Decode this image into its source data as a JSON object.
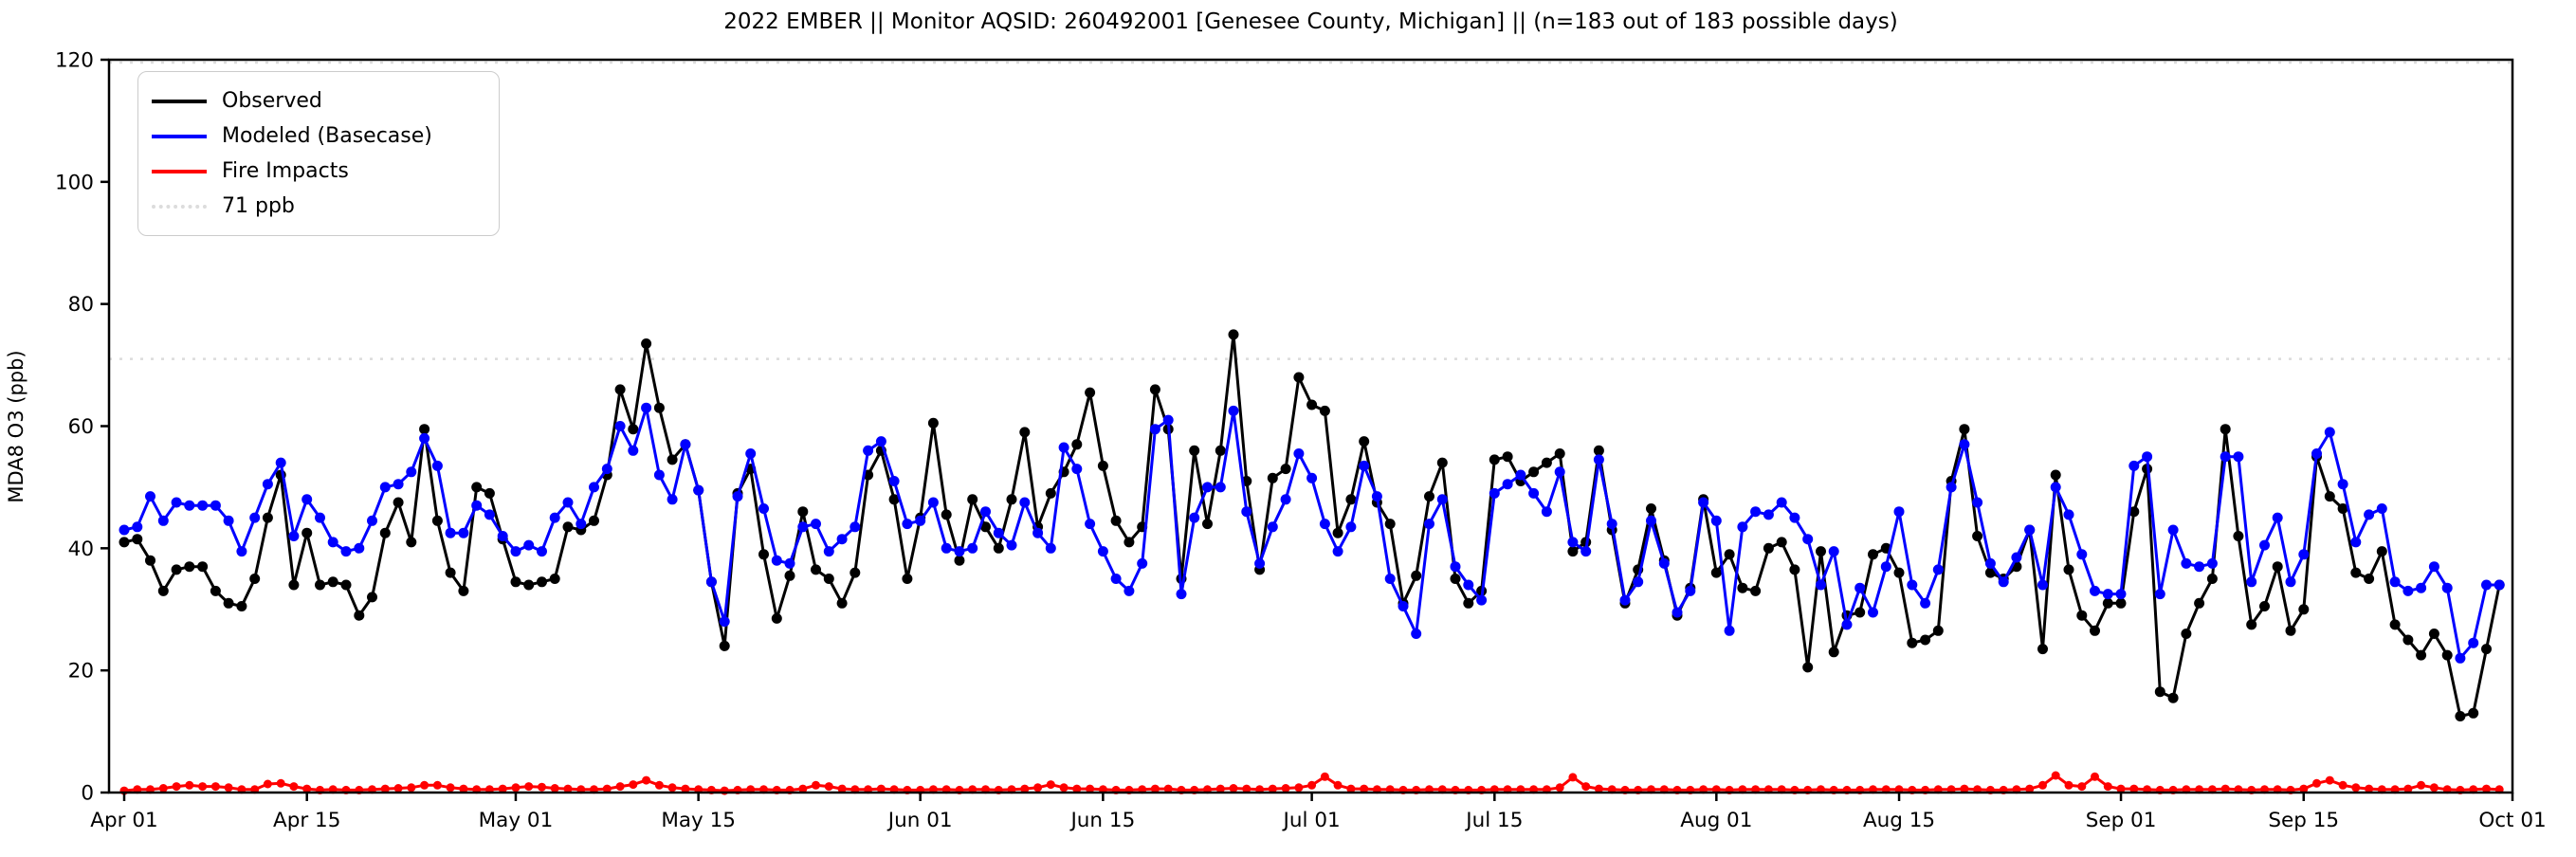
{
  "chart_data": {
    "type": "line",
    "title": "2022 EMBER || Monitor AQSID: 260492001 [Genesee County, Michigan] || (n=183 out of 183 possible days)",
    "xlabel": "",
    "ylabel": "MDA8 O3 (ppb)",
    "ylim": [
      0,
      120
    ],
    "yticks": [
      0,
      20,
      40,
      60,
      80,
      100,
      120
    ],
    "x_tick_labels": [
      "Apr 01",
      "Apr 15",
      "May 01",
      "May 15",
      "Jun 01",
      "Jun 15",
      "Jul 01",
      "Jul 15",
      "Aug 01",
      "Aug 15",
      "Sep 01",
      "Sep 15",
      "Oct 01"
    ],
    "x_tick_day_offsets": [
      0,
      14,
      30,
      44,
      61,
      75,
      91,
      105,
      122,
      136,
      153,
      167,
      183
    ],
    "n_days": 183,
    "date_range": "Apr 01 - Sep 30, 2022",
    "grid": false,
    "legend_position": "upper left",
    "threshold": {
      "value": 71,
      "label": "71 ppb",
      "color": "#dcdcdc",
      "style": "dotted"
    },
    "top_reference_value": 120,
    "colors": {
      "observed": "#000000",
      "modeled": "#0000ff",
      "fire": "#ff0000",
      "threshold": "#dcdcdc"
    },
    "legend": [
      {
        "label": "Observed",
        "color": "#000000",
        "style": "solid"
      },
      {
        "label": "Modeled (Basecase)",
        "color": "#0000ff",
        "style": "solid"
      },
      {
        "label": "Fire Impacts",
        "color": "#ff0000",
        "style": "solid"
      },
      {
        "label": "71 ppb",
        "color": "#dcdcdc",
        "style": "dotted"
      }
    ],
    "series": [
      {
        "name": "Observed",
        "color": "#000000",
        "values": [
          41,
          41.5,
          38,
          33,
          36.5,
          37,
          37,
          33,
          31,
          30.5,
          35,
          45,
          52,
          34,
          42.5,
          34,
          34.5,
          34,
          29,
          32,
          42.5,
          47.5,
          41,
          59.5,
          44.5,
          36,
          33,
          50,
          49,
          41.5,
          34.5,
          34,
          34.5,
          35,
          43.5,
          43,
          44.5,
          52,
          66,
          59.5,
          73.5,
          63,
          54.5,
          57,
          49.5,
          34.5,
          24,
          49,
          53,
          39,
          28.5,
          35.5,
          46,
          36.5,
          35,
          31,
          36,
          52,
          56,
          48,
          35,
          45,
          60.5,
          45.5,
          38,
          48,
          43.5,
          40,
          48,
          59,
          43.5,
          49,
          52.5,
          57,
          65.5,
          53.5,
          44.5,
          41,
          43.5,
          66,
          59.5,
          35,
          56,
          44,
          56,
          75,
          51,
          36.5,
          51.5,
          53,
          68,
          63.5,
          62.5,
          42.5,
          48,
          57.5,
          47.5,
          44,
          31,
          35.5,
          48.5,
          54,
          35,
          31,
          33,
          54.5,
          55,
          51,
          52.5,
          54,
          55.5,
          39.5,
          41,
          56,
          43,
          31,
          36.5,
          46.5,
          38,
          29,
          33.5,
          48,
          36,
          39,
          33.5,
          33,
          40,
          41,
          36.5,
          20.5,
          39.5,
          23,
          29,
          29.5,
          39,
          40,
          36,
          24.5,
          25,
          26.5,
          51,
          59.5,
          42,
          36,
          35,
          37,
          43,
          23.5,
          52,
          36.5,
          29,
          26.5,
          31,
          31,
          46,
          53,
          16.5,
          15.5,
          26,
          31,
          35,
          59.5,
          42,
          27.5,
          30.5,
          37,
          26.5,
          30,
          55,
          48.5,
          46.5,
          36,
          35,
          39.5,
          27.5,
          25,
          22.5,
          26,
          22.5,
          12.5,
          13,
          23.5,
          34
        ]
      },
      {
        "name": "Modeled (Basecase)",
        "color": "#0000ff",
        "values": [
          43,
          43.5,
          48.5,
          44.5,
          47.5,
          47,
          47,
          47,
          44.5,
          39.5,
          45,
          50.5,
          54,
          42,
          48,
          45,
          41,
          39.5,
          40,
          44.5,
          50,
          50.5,
          52.5,
          58,
          53.5,
          42.5,
          42.5,
          47,
          45.5,
          42,
          39.5,
          40.5,
          39.5,
          45,
          47.5,
          44,
          50,
          53,
          60,
          56,
          63,
          52,
          48,
          57,
          49.5,
          34.5,
          28,
          48.5,
          55.5,
          46.5,
          38,
          37.5,
          43.5,
          44,
          39.5,
          41.5,
          43.5,
          56,
          57.5,
          51,
          44,
          44.5,
          47.5,
          40,
          39.5,
          40,
          46,
          42.5,
          40.5,
          47.5,
          42.5,
          40,
          56.5,
          53,
          44,
          39.5,
          35,
          33,
          37.5,
          59.5,
          61,
          32.5,
          45,
          50,
          50,
          62.5,
          46,
          37.5,
          43.5,
          48,
          55.5,
          51.5,
          44,
          39.5,
          43.5,
          53.5,
          48.5,
          35,
          30.5,
          26,
          44,
          48,
          37,
          34,
          31.5,
          49,
          50.5,
          52,
          49,
          46,
          52.5,
          41,
          39.5,
          54.5,
          44,
          31.5,
          34.5,
          44.5,
          37.5,
          29.5,
          33,
          47.5,
          44.5,
          26.5,
          43.5,
          46,
          45.5,
          47.5,
          45,
          41.5,
          34,
          39.5,
          27.5,
          33.5,
          29.5,
          37,
          46,
          34,
          31,
          36.5,
          50,
          57,
          47.5,
          37.5,
          34.5,
          38.5,
          43,
          34,
          50,
          45.5,
          39,
          33,
          32.5,
          32.5,
          53.5,
          55,
          32.5,
          43,
          37.5,
          37,
          37.5,
          55,
          55,
          34.5,
          40.5,
          45,
          34.5,
          39,
          55.5,
          59,
          50.5,
          41,
          45.5,
          46.5,
          34.5,
          33,
          33.5,
          37,
          33.5,
          22,
          24.5,
          34,
          34
        ]
      },
      {
        "name": "Fire Impacts",
        "color": "#ff0000",
        "values": [
          0.3,
          0.5,
          0.5,
          0.7,
          1,
          1.2,
          1,
          1,
          0.8,
          0.5,
          0.5,
          1.4,
          1.5,
          1,
          0.6,
          0.4,
          0.5,
          0.4,
          0.4,
          0.5,
          0.6,
          0.7,
          0.8,
          1.2,
          1.2,
          0.8,
          0.6,
          0.5,
          0.5,
          0.6,
          0.8,
          1,
          0.9,
          0.7,
          0.6,
          0.5,
          0.5,
          0.6,
          1,
          1.3,
          2,
          1.2,
          0.8,
          0.6,
          0.5,
          0.4,
          0.3,
          0.4,
          0.5,
          0.5,
          0.4,
          0.4,
          0.6,
          1.2,
          1,
          0.6,
          0.5,
          0.5,
          0.6,
          0.5,
          0.4,
          0.4,
          0.5,
          0.5,
          0.4,
          0.5,
          0.5,
          0.4,
          0.5,
          0.6,
          0.8,
          1.3,
          0.8,
          0.6,
          0.6,
          0.5,
          0.4,
          0.4,
          0.5,
          0.6,
          0.6,
          0.4,
          0.4,
          0.5,
          0.6,
          0.7,
          0.6,
          0.5,
          0.6,
          0.7,
          0.8,
          1.2,
          2.6,
          1.2,
          0.6,
          0.6,
          0.5,
          0.5,
          0.4,
          0.4,
          0.5,
          0.5,
          0.4,
          0.4,
          0.4,
          0.5,
          0.5,
          0.5,
          0.5,
          0.5,
          0.8,
          2.5,
          1,
          0.6,
          0.5,
          0.4,
          0.4,
          0.5,
          0.5,
          0.4,
          0.4,
          0.5,
          0.5,
          0.4,
          0.5,
          0.5,
          0.5,
          0.5,
          0.4,
          0.4,
          0.5,
          0.4,
          0.4,
          0.4,
          0.5,
          0.5,
          0.5,
          0.4,
          0.4,
          0.5,
          0.5,
          0.6,
          0.5,
          0.4,
          0.4,
          0.5,
          0.6,
          1.2,
          2.8,
          1.2,
          1,
          2.6,
          1,
          0.6,
          0.6,
          0.5,
          0.4,
          0.4,
          0.5,
          0.5,
          0.5,
          0.6,
          0.5,
          0.4,
          0.5,
          0.5,
          0.4,
          0.6,
          1.5,
          2,
          1.2,
          0.8,
          0.6,
          0.5,
          0.5,
          0.6,
          1.2,
          0.8,
          0.5,
          0.4,
          0.5,
          0.6,
          0.5
        ]
      }
    ]
  }
}
